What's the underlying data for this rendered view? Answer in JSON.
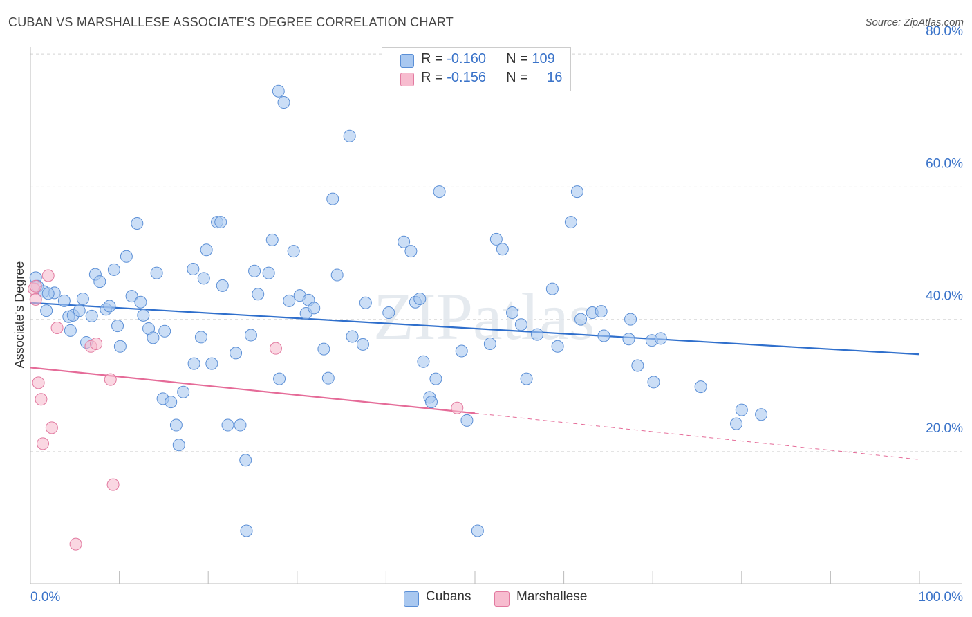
{
  "title": "CUBAN VS MARSHALLESE ASSOCIATE'S DEGREE CORRELATION CHART",
  "source": "Source: ZipAtlas.com",
  "watermark": "ZIPatlas",
  "legend_top": {
    "rows": [
      {
        "r_label": "R = ",
        "r_value": "-0.160",
        "n_label": "N = ",
        "n_value": "109",
        "color": "#a9c8f0",
        "border": "#5b8fd6"
      },
      {
        "r_label": "R = ",
        "r_value": "-0.156",
        "n_label": "N = ",
        "n_value": "16",
        "color": "#f7bccf",
        "border": "#e27aa0"
      }
    ]
  },
  "legend_bottom": [
    {
      "label": "Cubans",
      "color": "#a9c8f0",
      "border": "#5b8fd6"
    },
    {
      "label": "Marshallese",
      "color": "#f7bccf",
      "border": "#e27aa0"
    }
  ],
  "chart_data": {
    "type": "scatter",
    "title": "CUBAN VS MARSHALLESE ASSOCIATE'S DEGREE CORRELATION CHART",
    "xlabel": "",
    "ylabel": "Associate's Degree",
    "xlim": [
      0,
      100
    ],
    "ylim": [
      0,
      82
    ],
    "x_tick_labels": [
      "0.0%",
      "100.0%"
    ],
    "y_ticks": [
      20,
      40,
      60,
      80
    ],
    "y_tick_labels": [
      "20.0%",
      "40.0%",
      "60.0%",
      "80.0%"
    ],
    "grid": true,
    "legend_position": "top-center",
    "series": [
      {
        "name": "Cubans",
        "color": "#a9c8f0",
        "stroke": "#5b8fd6",
        "trend": {
          "x0": 0,
          "y0": 42.5,
          "x1": 100,
          "y1": 34.7,
          "color": "#2f6fcc"
        },
        "points": [
          [
            0.6,
            46.3
          ],
          [
            0.8,
            45.0
          ],
          [
            1.5,
            44.2
          ],
          [
            2.7,
            44.0
          ],
          [
            3.8,
            42.8
          ],
          [
            4.3,
            40.4
          ],
          [
            1.8,
            41.3
          ],
          [
            2.0,
            43.9
          ],
          [
            4.5,
            38.3
          ],
          [
            4.8,
            40.6
          ],
          [
            5.5,
            41.3
          ],
          [
            5.9,
            43.1
          ],
          [
            6.3,
            36.5
          ],
          [
            6.9,
            40.5
          ],
          [
            7.3,
            46.8
          ],
          [
            7.8,
            45.7
          ],
          [
            8.5,
            41.5
          ],
          [
            8.9,
            42.0
          ],
          [
            9.4,
            47.5
          ],
          [
            9.8,
            39.0
          ],
          [
            10.1,
            35.9
          ],
          [
            10.8,
            49.5
          ],
          [
            11.4,
            43.5
          ],
          [
            12.0,
            54.5
          ],
          [
            12.4,
            42.6
          ],
          [
            12.7,
            40.6
          ],
          [
            13.3,
            38.6
          ],
          [
            13.8,
            37.2
          ],
          [
            14.2,
            47.0
          ],
          [
            14.9,
            28.0
          ],
          [
            15.1,
            38.2
          ],
          [
            15.8,
            27.5
          ],
          [
            16.4,
            24.0
          ],
          [
            16.7,
            21.0
          ],
          [
            17.2,
            29.0
          ],
          [
            18.3,
            47.6
          ],
          [
            18.4,
            33.3
          ],
          [
            19.2,
            37.3
          ],
          [
            19.5,
            46.2
          ],
          [
            19.8,
            50.5
          ],
          [
            20.4,
            33.3
          ],
          [
            21.0,
            54.7
          ],
          [
            21.4,
            54.7
          ],
          [
            21.6,
            45.1
          ],
          [
            22.2,
            24.0
          ],
          [
            23.1,
            34.9
          ],
          [
            23.6,
            24.0
          ],
          [
            24.2,
            18.7
          ],
          [
            24.3,
            8.0
          ],
          [
            24.8,
            37.6
          ],
          [
            25.2,
            47.3
          ],
          [
            25.6,
            43.8
          ],
          [
            26.8,
            47.0
          ],
          [
            27.2,
            52.0
          ],
          [
            27.9,
            74.5
          ],
          [
            28.0,
            31.0
          ],
          [
            28.5,
            72.8
          ],
          [
            29.1,
            42.8
          ],
          [
            29.6,
            50.3
          ],
          [
            30.3,
            43.6
          ],
          [
            31.0,
            40.9
          ],
          [
            31.3,
            42.9
          ],
          [
            31.9,
            41.7
          ],
          [
            33.0,
            35.5
          ],
          [
            33.5,
            31.1
          ],
          [
            34.0,
            58.2
          ],
          [
            34.5,
            46.7
          ],
          [
            35.9,
            67.7
          ],
          [
            36.2,
            37.4
          ],
          [
            37.4,
            36.2
          ],
          [
            37.7,
            42.5
          ],
          [
            40.3,
            41.0
          ],
          [
            42.0,
            51.7
          ],
          [
            42.8,
            50.3
          ],
          [
            43.3,
            42.6
          ],
          [
            43.8,
            43.1
          ],
          [
            44.2,
            33.6
          ],
          [
            44.9,
            28.2
          ],
          [
            45.1,
            27.5
          ],
          [
            45.6,
            31.0
          ],
          [
            46.0,
            59.3
          ],
          [
            48.5,
            35.2
          ],
          [
            49.1,
            24.7
          ],
          [
            50.3,
            8.0
          ],
          [
            51.7,
            36.3
          ],
          [
            52.4,
            52.1
          ],
          [
            53.1,
            50.6
          ],
          [
            54.2,
            41.0
          ],
          [
            55.2,
            39.2
          ],
          [
            55.8,
            31.0
          ],
          [
            57.0,
            37.7
          ],
          [
            58.7,
            44.6
          ],
          [
            59.3,
            35.9
          ],
          [
            60.8,
            54.7
          ],
          [
            61.5,
            59.3
          ],
          [
            61.9,
            40.0
          ],
          [
            63.2,
            41.0
          ],
          [
            64.2,
            41.2
          ],
          [
            64.5,
            37.5
          ],
          [
            67.3,
            37.0
          ],
          [
            67.5,
            40.0
          ],
          [
            68.3,
            33.0
          ],
          [
            70.1,
            30.5
          ],
          [
            69.9,
            36.8
          ],
          [
            70.9,
            37.1
          ],
          [
            75.4,
            29.8
          ],
          [
            79.4,
            24.2
          ],
          [
            80.0,
            26.3
          ],
          [
            82.2,
            25.6
          ]
        ]
      },
      {
        "name": "Marshallese",
        "color": "#f7bccf",
        "stroke": "#e27aa0",
        "trend": {
          "x0": 0,
          "y0": 32.7,
          "x1": 50,
          "y1": 25.8,
          "color": "#e56b98",
          "dash_x1": 100,
          "dash_y1": 18.8
        },
        "points": [
          [
            0.4,
            44.6
          ],
          [
            0.6,
            43.0
          ],
          [
            0.9,
            30.4
          ],
          [
            1.2,
            27.9
          ],
          [
            1.4,
            21.2
          ],
          [
            2.0,
            46.6
          ],
          [
            2.4,
            23.6
          ],
          [
            3.0,
            38.7
          ],
          [
            6.8,
            35.9
          ],
          [
            7.4,
            36.3
          ],
          [
            9.0,
            30.9
          ],
          [
            9.3,
            15.0
          ],
          [
            5.1,
            6.0
          ],
          [
            27.6,
            35.6
          ],
          [
            48.0,
            26.6
          ],
          [
            0.6,
            45.0
          ]
        ]
      }
    ]
  }
}
